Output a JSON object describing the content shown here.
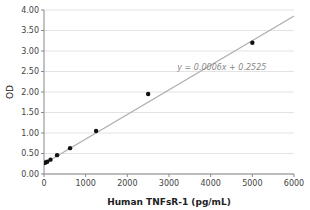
{
  "chart_data": {
    "type": "scatter",
    "xlabel": "Human TNFsR-1 (pg/mL)",
    "ylabel": "OD",
    "xlim": [
      0,
      6000
    ],
    "ylim": [
      0.0,
      4.0
    ],
    "xticks": [
      0,
      1000,
      2000,
      3000,
      4000,
      5000,
      6000
    ],
    "yticks": [
      {
        "value": 0.0,
        "label": "0.00"
      },
      {
        "value": 0.5,
        "label": "0.50"
      },
      {
        "value": 1.0,
        "label": "1.00"
      },
      {
        "value": 1.5,
        "label": "1.50"
      },
      {
        "value": 2.0,
        "label": "2.00"
      },
      {
        "value": 2.5,
        "label": "2.50"
      },
      {
        "value": 3.0,
        "label": "3.00"
      },
      {
        "value": 3.5,
        "label": "3.50"
      },
      {
        "value": 4.0,
        "label": "4.00"
      }
    ],
    "grid": true,
    "series": [
      {
        "type": "scatter",
        "color": "#111111",
        "x": [
          0,
          39,
          78,
          156,
          313,
          625,
          1250,
          2500,
          5000
        ],
        "values": [
          0.27,
          0.28,
          0.3,
          0.35,
          0.46,
          0.63,
          1.05,
          1.95,
          3.2
        ]
      },
      {
        "type": "line",
        "color": "#b0b0b0",
        "x": [
          0,
          6000
        ],
        "values": [
          0.2525,
          3.8525
        ]
      }
    ],
    "annotations": [
      {
        "text": "y = 0.0006x + 0.2525",
        "x": 3200,
        "y": 2.6
      }
    ]
  }
}
